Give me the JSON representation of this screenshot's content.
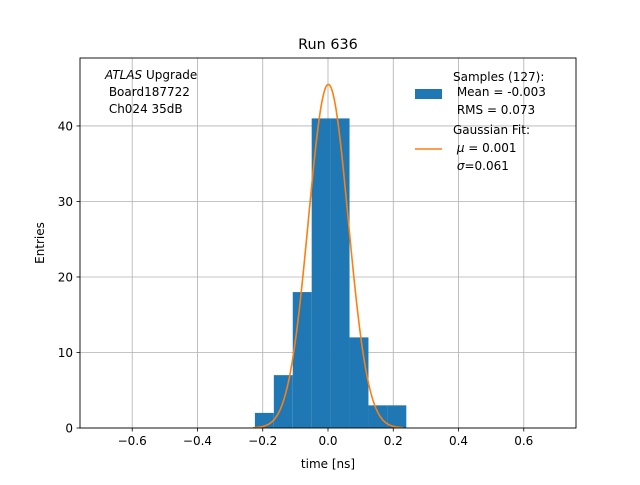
{
  "chart_data": {
    "type": "bar",
    "title": "Run 636",
    "xlabel": "time [ns]",
    "ylabel": "Entries",
    "xlim": [
      -0.76,
      0.76
    ],
    "ylim": [
      0,
      49
    ],
    "xticks": [
      -0.6,
      -0.4,
      -0.2,
      0.0,
      0.2,
      0.4,
      0.6
    ],
    "xtick_labels": [
      "−0.6",
      "−0.4",
      "−0.2",
      "0.0",
      "0.2",
      "0.4",
      "0.6"
    ],
    "yticks": [
      0,
      10,
      20,
      30,
      40
    ],
    "ytick_labels": [
      "0",
      "10",
      "20",
      "30",
      "40"
    ],
    "grid": true,
    "legend_position": "top-right",
    "histogram": {
      "bin_edges": [
        -0.224,
        -0.166,
        -0.108,
        -0.05,
        0.008,
        0.066,
        0.124,
        0.182,
        0.24
      ],
      "counts": [
        2,
        7,
        18,
        41,
        41,
        12,
        3,
        3
      ],
      "color": "#1f77b4"
    },
    "fit": {
      "type": "gaussian",
      "amplitude": 45.5,
      "mu": 0.001,
      "sigma": 0.061,
      "color": "#ff7f0e"
    },
    "annotation": {
      "italic": "ATLAS",
      "first_line_rest": " Upgrade",
      "lines": [
        " Board187722",
        " Ch024 35dB"
      ]
    },
    "legend": {
      "samples": {
        "title": "Samples (127):",
        "lines": [
          " Mean = -0.003",
          " RMS = 0.073"
        ]
      },
      "fit": {
        "title": "Gaussian Fit:",
        "mu_symbol": "μ",
        "mu_text": " = 0.001",
        "sigma_symbol": "σ",
        "sigma_text": "=0.061"
      }
    }
  }
}
